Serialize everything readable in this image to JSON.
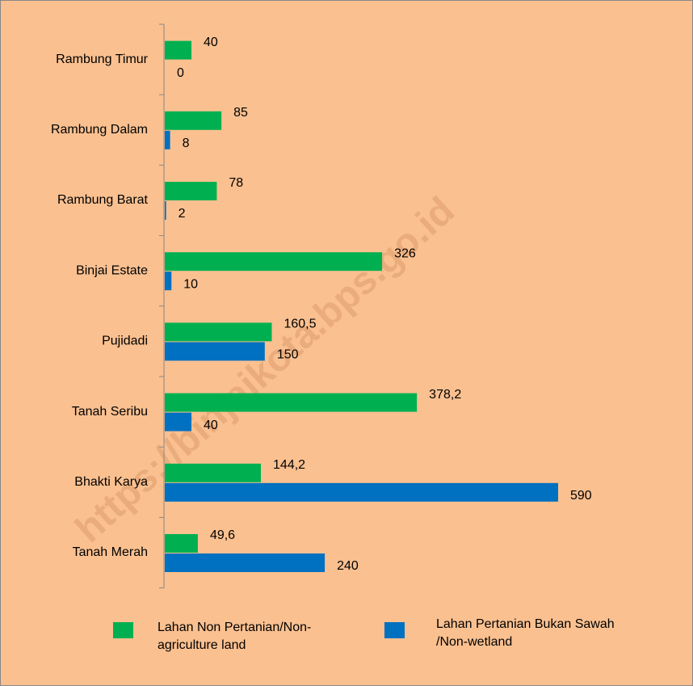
{
  "chart_data": {
    "type": "barh",
    "categories": [
      "Rambung Timur",
      "Rambung Dalam",
      "Rambung Barat",
      "Binjai Estate",
      "Pujidadi",
      "Tanah Seribu",
      "Bhakti Karya",
      "Tanah Merah"
    ],
    "series": [
      {
        "name": "Lahan Non Pertanian/Non-agriculture land",
        "color": "#00b050",
        "values": [
          40,
          85,
          78,
          326,
          160.5,
          378.2,
          144.2,
          49.6
        ],
        "value_labels": [
          "40",
          "85",
          "78",
          "326",
          "160,5",
          "378,2",
          "144,2",
          "49,6"
        ]
      },
      {
        "name": "Lahan Pertanian Bukan Sawah /Non-wetland",
        "color": "#0070c0",
        "values": [
          0,
          8,
          2,
          10,
          150,
          40,
          590,
          240
        ],
        "value_labels": [
          "0",
          "8",
          "2",
          "10",
          "150",
          "40",
          "590",
          "240"
        ]
      }
    ],
    "watermark": "https://binjaikota.bps.go.id"
  }
}
